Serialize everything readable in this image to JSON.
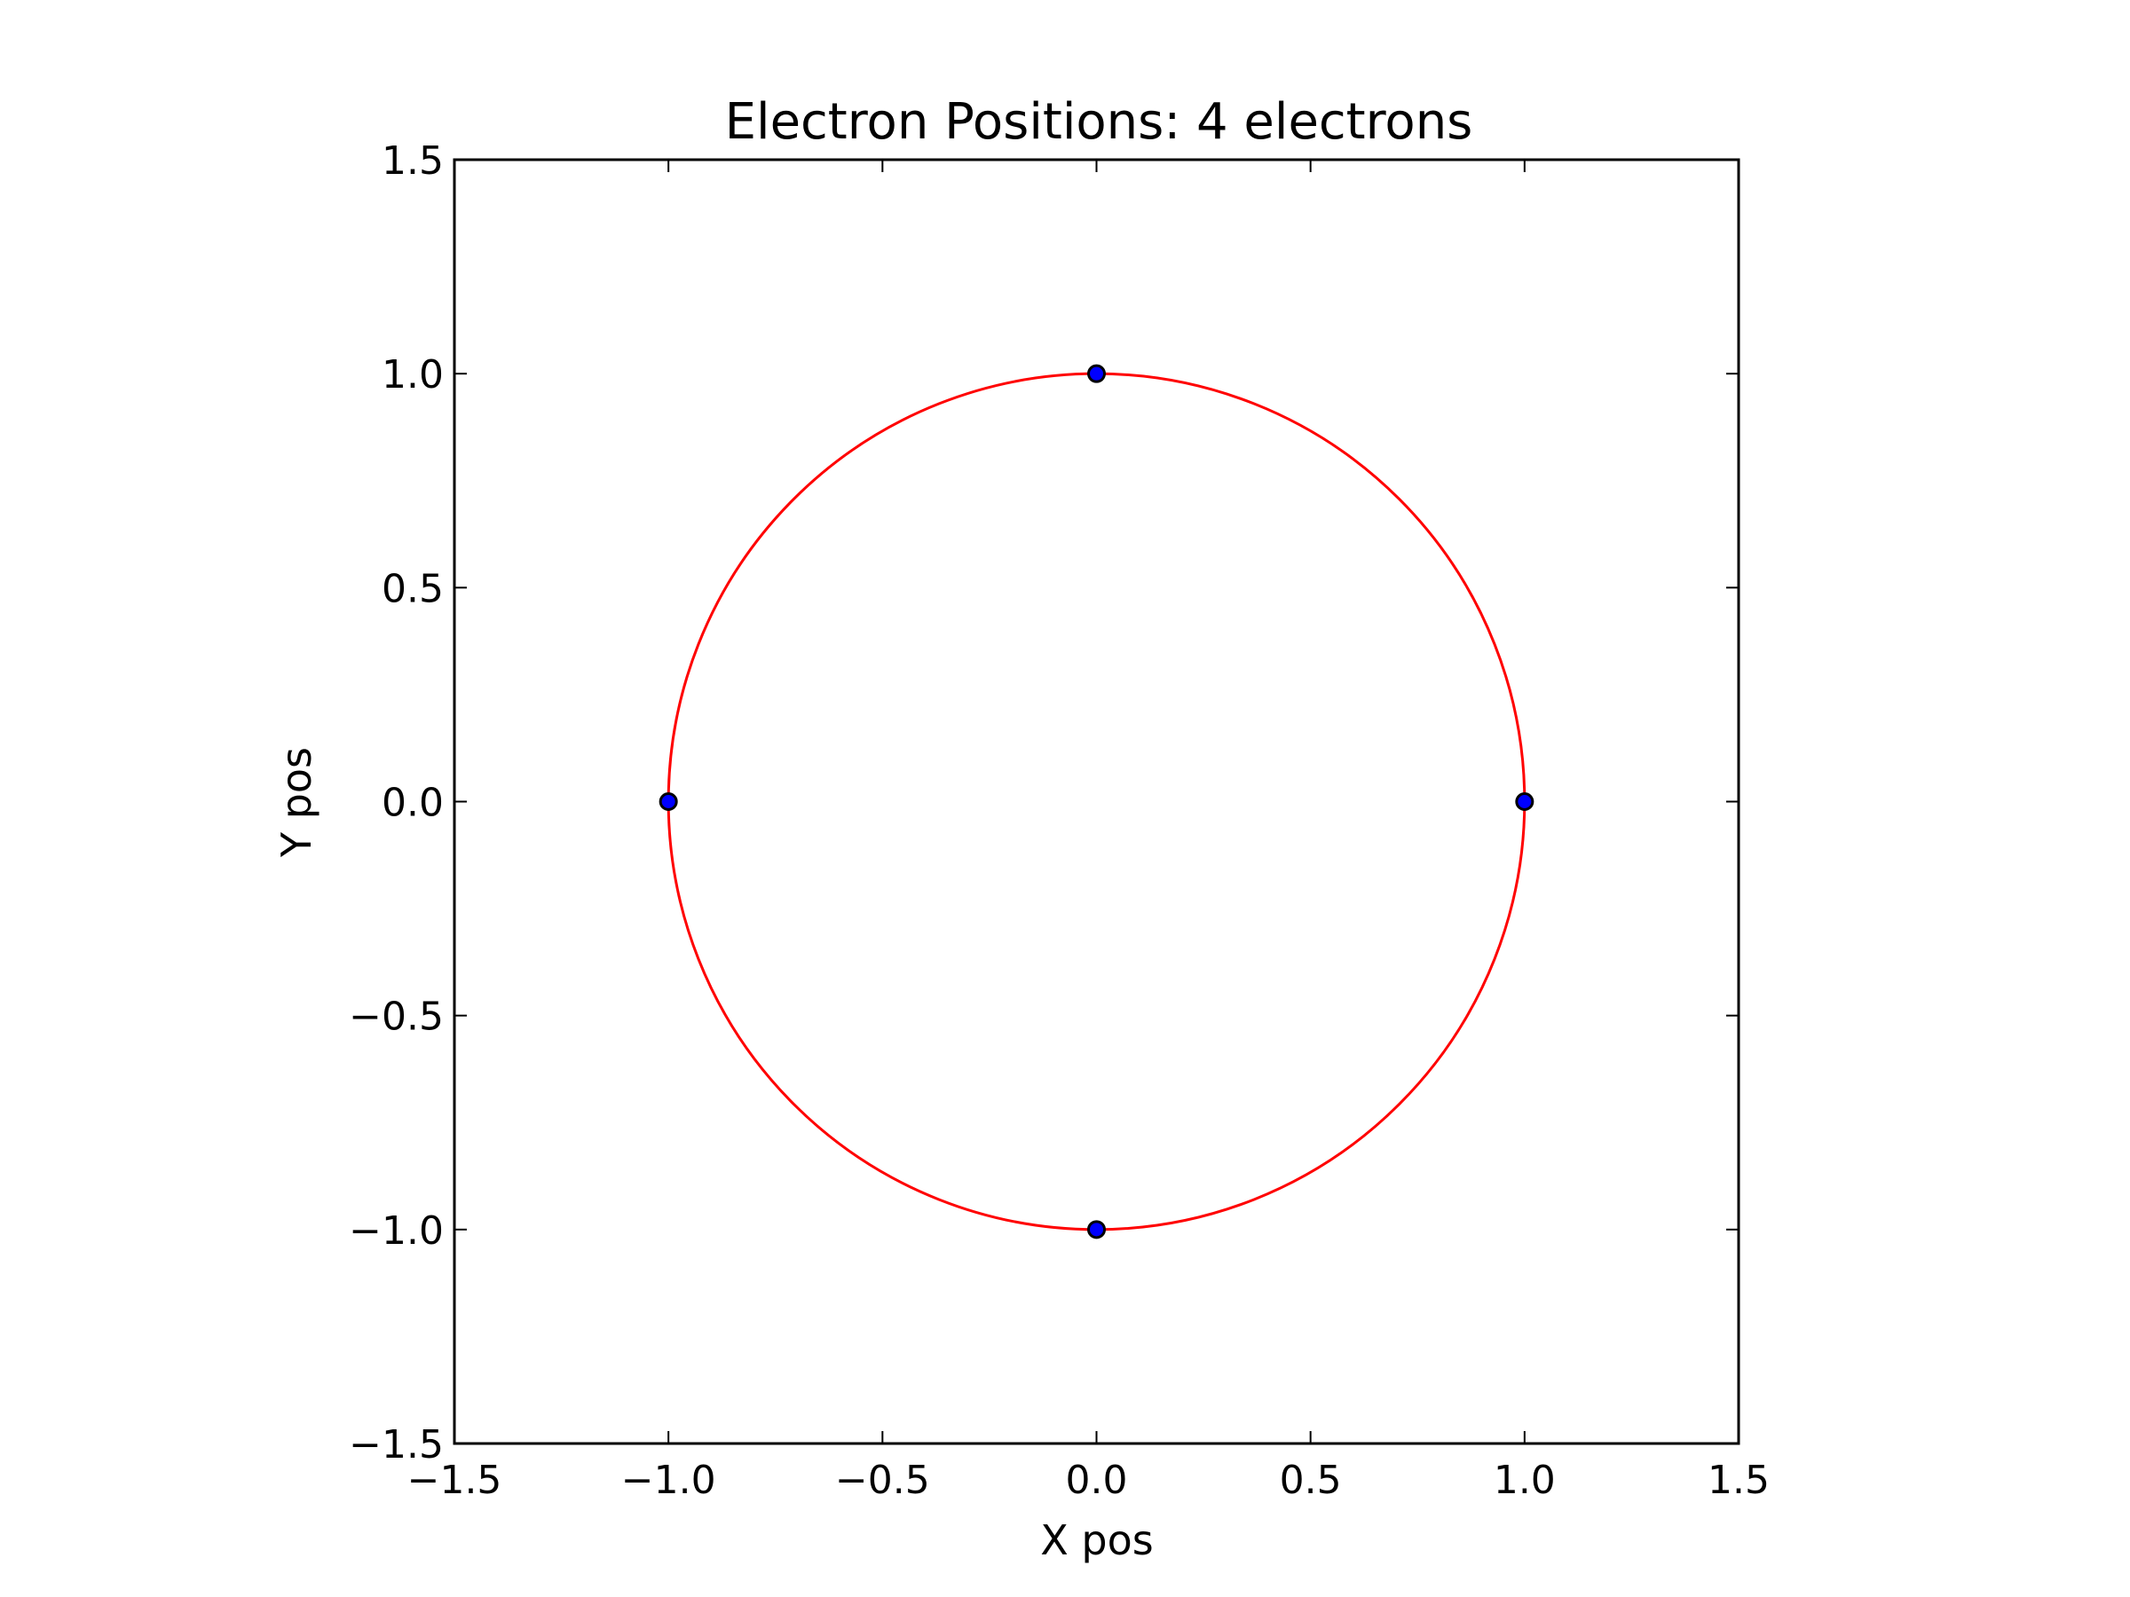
{
  "chart_data": {
    "type": "scatter",
    "title": "Electron Positions: 4 electrons",
    "xlabel": "X pos",
    "ylabel": "Y pos",
    "xlim": [
      -1.5,
      1.5
    ],
    "ylim": [
      -1.5,
      1.5
    ],
    "xticks": [
      -1.5,
      -1.0,
      -0.5,
      0.0,
      0.5,
      1.0,
      1.5
    ],
    "yticks": [
      -1.5,
      -1.0,
      -0.5,
      0.0,
      0.5,
      1.0,
      1.5
    ],
    "xtick_labels": [
      "−1.5",
      "−1.0",
      "−0.5",
      "0.0",
      "0.5",
      "1.0",
      "1.5"
    ],
    "ytick_labels": [
      "−1.5",
      "−1.0",
      "−0.5",
      "0.0",
      "0.5",
      "1.0",
      "1.5"
    ],
    "grid": false,
    "circle": {
      "center": [
        0,
        0
      ],
      "radius": 1.0,
      "color": "#ff0000"
    },
    "points": [
      {
        "x": 0.0,
        "y": 1.0
      },
      {
        "x": -1.0,
        "y": 0.0
      },
      {
        "x": 1.0,
        "y": 0.0
      },
      {
        "x": 0.0,
        "y": -1.0
      }
    ],
    "point_color": "#0000ff",
    "point_edge_color": "#000000"
  }
}
